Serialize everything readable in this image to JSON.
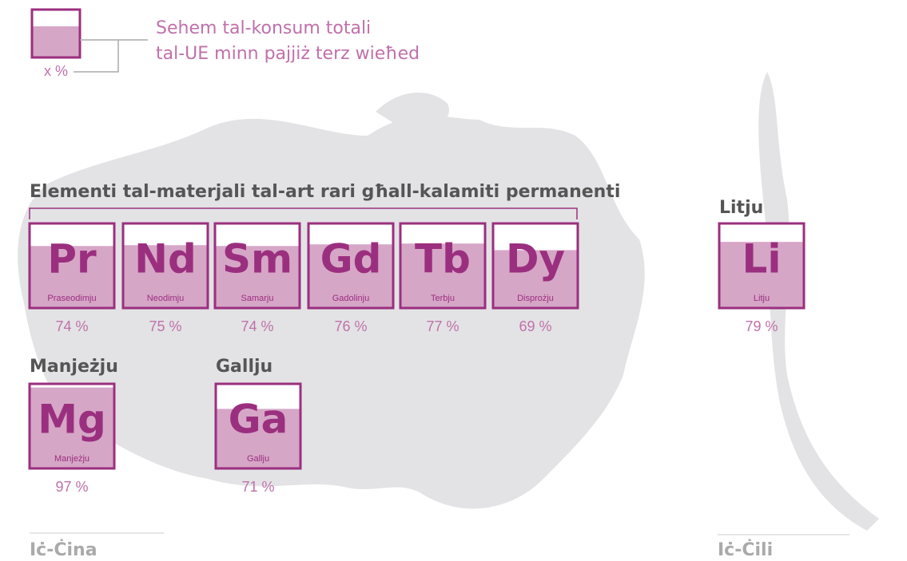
{
  "legend": {
    "text": [
      "Sehem tal-konsum totali",
      "tal-UE minn pajjiż terz wieħed"
    ],
    "label": "x %"
  },
  "regions": [
    "Iċ-Ċina",
    "Iċ-Ċili"
  ],
  "groups": [
    {
      "title": "Elementi tal-materjali tal-art rari għall-kalamiti permanenti",
      "elements": [
        {
          "symbol": "Pr",
          "name": "Praseodimju",
          "value": 74,
          "value_label": "74 %"
        },
        {
          "symbol": "Nd",
          "name": "Neodimju",
          "value": 75,
          "value_label": "75 %"
        },
        {
          "symbol": "Sm",
          "name": "Samarju",
          "value": 74,
          "value_label": "74 %"
        },
        {
          "symbol": "Gd",
          "name": "Gadolinju",
          "value": 76,
          "value_label": "76 %"
        },
        {
          "symbol": "Tb",
          "name": "Terbju",
          "value": 77,
          "value_label": "77 %"
        },
        {
          "symbol": "Dy",
          "name": "Disprożju",
          "value": 69,
          "value_label": "69 %"
        }
      ]
    },
    {
      "title": "Manjeżju",
      "elements": [
        {
          "symbol": "Mg",
          "name": "Manjeżju",
          "value": 97,
          "value_label": "97 %"
        }
      ]
    },
    {
      "title": "Gallju",
      "elements": [
        {
          "symbol": "Ga",
          "name": "Gallju",
          "value": 71,
          "value_label": "71 %"
        }
      ]
    },
    {
      "title": "Litju",
      "elements": [
        {
          "symbol": "Li",
          "name": "Litju",
          "value": 79,
          "value_label": "79 %"
        }
      ]
    }
  ]
}
